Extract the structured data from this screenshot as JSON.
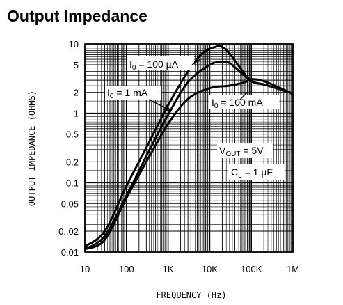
{
  "title": "Output Impedance",
  "chart_data": {
    "type": "line",
    "xlabel": "FREQUENCY (Hz)",
    "ylabel": "OUTPUT IMPEDANCE (OHMS)",
    "xscale": "log",
    "yscale": "log",
    "xlim": [
      10,
      1000000
    ],
    "ylim": [
      0.01,
      10
    ],
    "grid": true,
    "x_ticks": [
      10,
      100,
      1000,
      10000,
      100000,
      1000000
    ],
    "x_tick_labels": [
      "10",
      "100",
      "1K",
      "10K",
      "100K",
      "1M"
    ],
    "y_ticks": [
      10,
      5,
      2,
      1,
      0.5,
      0.2,
      0.1,
      0.05,
      0.02,
      0.01
    ],
    "y_tick_labels": [
      "10",
      "5",
      "2",
      "1",
      "0.5",
      "0.2",
      "0.1",
      "0.05",
      "0..02",
      "0.01"
    ],
    "series": [
      {
        "name": "I0 = 100 µA",
        "x": [
          10,
          30,
          100,
          300,
          1000,
          3000,
          7000,
          15000,
          20000,
          30000,
          50000,
          100000,
          200000,
          500000,
          1000000
        ],
        "y": [
          0.012,
          0.02,
          0.09,
          0.32,
          1.3,
          4.0,
          7.5,
          9.2,
          9.0,
          7.3,
          4.8,
          2.9,
          2.6,
          2.2,
          1.9
        ]
      },
      {
        "name": "I0 = 1 mA",
        "x": [
          10,
          30,
          100,
          300,
          1000,
          3000,
          10000,
          20000,
          30000,
          50000,
          100000,
          200000,
          500000,
          1000000
        ],
        "y": [
          0.011,
          0.017,
          0.065,
          0.24,
          0.95,
          2.8,
          5.0,
          5.5,
          5.3,
          4.1,
          2.9,
          2.6,
          2.2,
          1.9
        ]
      },
      {
        "name": "I0 = 100 mA",
        "x": [
          10,
          30,
          100,
          300,
          1000,
          3000,
          10000,
          30000,
          70000,
          100000,
          200000,
          500000,
          1000000
        ],
        "y": [
          0.011,
          0.015,
          0.06,
          0.2,
          0.7,
          1.6,
          2.3,
          2.5,
          2.8,
          3.1,
          2.9,
          2.3,
          1.9
        ]
      }
    ],
    "annotations": [
      {
        "text": "I0 = 100 µA"
      },
      {
        "text": "I0 = 1 mA"
      },
      {
        "text": "I0 = 100 mA"
      },
      {
        "text": "VOUT = 5V"
      },
      {
        "text": "CL = 1 µF"
      }
    ]
  }
}
